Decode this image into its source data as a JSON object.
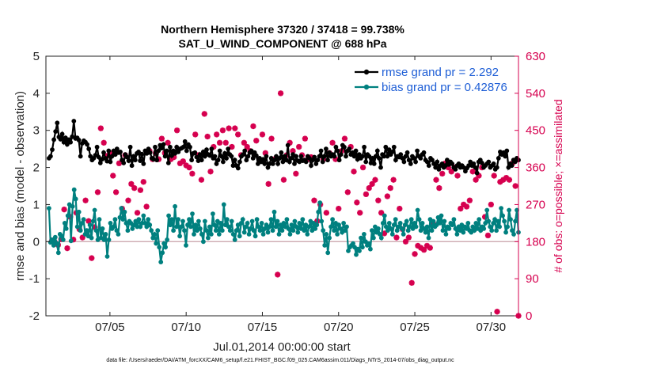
{
  "chart_data": {
    "type": "line",
    "title": "Northern Hemisphere 37320 / 37418 = 99.738%",
    "subtitle": "SAT_U_WIND_COMPONENT @ 688 hPa",
    "xlabel": "Jul.01,2014 00:00:00 start",
    "ylabel": "rmse and bias (model - observation)",
    "y2label": "# of obs: o=possible; ×=assimilated",
    "footnote": "data file: /Users/raeder/DAI/ATM_forcXX/CAM6_setup/f.e21.FHIST_BGC.f09_025.CAM6assim.011/Diags_NTrS_2014-07/obs_diag_output.nc",
    "xlim": [
      0.8,
      31.8
    ],
    "ylim": [
      -2,
      5
    ],
    "y2lim": [
      0,
      630
    ],
    "xticks": [
      5,
      10,
      15,
      20,
      25,
      30
    ],
    "xticklabels": [
      "07/05",
      "07/10",
      "07/15",
      "07/20",
      "07/25",
      "07/30"
    ],
    "yticks": [
      -2,
      -1,
      0,
      1,
      2,
      3,
      4,
      5
    ],
    "y2ticks": [
      0,
      90,
      180,
      270,
      360,
      450,
      540,
      630
    ],
    "legend_position": "top-right",
    "colors": {
      "rmse": "#000000",
      "bias": "#00807f",
      "obs": "#d6004f",
      "zero_line": "#c8a0a8",
      "axis": "#222222"
    },
    "series": [
      {
        "name": "rmse grand pr = 2.292",
        "color": "#000000",
        "values": [
          2.25,
          2.3,
          2.48,
          2.75,
          2.97,
          3.2,
          2.82,
          2.76,
          2.9,
          2.68,
          2.8,
          2.62,
          2.75,
          2.68,
          2.83,
          3.25,
          2.78,
          2.8,
          2.74,
          2.3,
          2.65,
          2.72,
          2.68,
          2.62,
          2.5,
          2.3,
          2.2,
          2.25,
          2.33,
          2.55,
          2.28,
          2.12,
          2.22,
          2.4,
          2.25,
          2.17,
          2.45,
          2.15,
          2.3,
          2.45,
          2.35,
          2.5,
          2.4,
          2.42,
          2.2,
          2.12,
          2.35,
          2.28,
          2.18,
          2.55,
          2.05,
          2.3,
          2.2,
          2.38,
          2.42,
          2.18,
          2.36,
          2.1,
          2.45,
          2.38,
          2.5,
          2.4,
          2.25,
          2.22,
          2.55,
          2.2,
          2.45,
          2.6,
          2.52,
          2.62,
          2.3,
          2.45,
          2.12,
          2.55,
          2.32,
          2.45,
          2.38,
          2.55,
          2.42,
          2.5,
          2.52,
          2.55,
          2.7,
          2.45,
          2.62,
          2.55,
          2.2,
          2.38,
          2.4,
          2.28,
          2.18,
          2.35,
          2.2,
          2.42,
          2.3,
          2.48,
          2.35,
          2.32,
          2.5,
          2.25,
          2.3,
          2.1,
          2.2,
          2.45,
          2.3,
          2.15,
          2.38,
          2.25,
          2.5,
          2.35,
          2.3,
          2.05,
          2.2,
          2.05,
          1.98,
          2.15,
          2.3,
          2.35,
          2.45,
          2.2,
          2.3,
          2.4,
          2.45,
          2.25,
          2.4,
          2.32,
          2.1,
          2.25,
          2.15,
          2.22,
          2.1,
          2.3,
          2.0,
          2.1,
          2.25,
          2.1,
          2.2,
          2.3,
          2.1,
          2.25,
          2.4,
          2.15,
          2.3,
          2.2,
          2.6,
          2.15,
          2.25,
          2.35,
          2.1,
          2.3,
          2.18,
          2.15,
          2.3,
          2.18,
          2.2,
          2.15,
          2.3,
          2.25,
          2.05,
          2.2,
          2.28,
          2.1,
          2.2,
          2.3,
          2.45,
          2.15,
          2.3,
          2.5,
          2.2,
          2.4,
          2.3,
          2.35,
          2.3,
          2.55,
          2.45,
          2.2,
          2.35,
          2.6,
          2.55,
          2.3,
          2.45,
          2.5,
          2.35,
          2.4,
          2.3,
          2.45,
          2.22,
          2.35,
          2.25,
          2.3,
          2.55,
          2.15,
          2.35,
          2.3,
          2.12,
          2.25,
          2.1,
          2.3,
          2.45,
          2.25,
          2.0,
          2.35,
          2.3,
          2.55,
          2.3,
          2.48,
          2.35,
          2.42,
          2.55,
          2.2,
          2.3,
          2.28,
          2.35,
          2.25,
          2.15,
          2.3,
          2.4,
          2.2,
          2.1,
          2.3,
          2.25,
          2.15,
          2.45,
          2.3,
          2.25,
          2.35,
          2.4,
          2.2,
          2.15,
          2.05,
          2.25,
          2.2,
          2.1,
          2.0,
          2.15,
          1.95,
          2.05,
          2.1,
          2.0,
          2.05,
          2.2,
          2.08,
          2.15,
          2.1,
          2.0,
          1.95,
          2.05,
          2.1,
          2.0,
          2.05,
          2.0,
          1.9,
          1.98,
          2.05,
          2.15,
          2.05,
          2.1,
          2.0,
          1.85,
          2.15,
          2.2,
          2.12,
          2.0,
          2.05,
          2.1,
          2.15,
          2.0,
          2.05,
          2.1,
          1.95,
          2.0,
          2.25,
          2.42,
          2.35,
          2.4,
          2.3,
          2.45,
          2.0,
          2.1,
          2.05,
          2.2,
          2.15,
          2.25,
          2.2
        ]
      },
      {
        "name": "bias grand pr = 0.42876",
        "color": "#00807f",
        "values": [
          0.9,
          -0.02,
          0.05,
          -0.1,
          0.12,
          -0.05,
          -0.3,
          0.2,
          0.15,
          0.05,
          0.5,
          0.35,
          0.7,
          1.0,
          0.02,
          0.95,
          1.4,
          1.15,
          0.4,
          0.8,
          0.3,
          0.5,
          0.6,
          0.2,
          0.3,
          0.15,
          0.45,
          0.1,
          0.55,
          0.85,
          0.3,
          0.05,
          0.6,
          0.1,
          0.35,
          0.05,
          0.2,
          -0.4,
          0.05,
          0.5,
          0.35,
          0.4,
          0.6,
          0.3,
          0.2,
          0.65,
          0.9,
          0.6,
          0.8,
          0.5,
          0.3,
          0.55,
          0.5,
          0.35,
          0.45,
          0.55,
          0.4,
          0.6,
          0.4,
          0.5,
          0.7,
          0.5,
          0.4,
          0.6,
          0.45,
          0.3,
          0.1,
          0.2,
          -0.05,
          0.3,
          -0.15,
          -0.55,
          -0.3,
          -0.05,
          -0.15,
          0.05,
          0.7,
          0.45,
          0.6,
          0.3,
          0.95,
          0.4,
          0.6,
          0.15,
          0.4,
          0.55,
          0.3,
          -0.1,
          0.45,
          0.6,
          0.4,
          0.75,
          0.2,
          0.45,
          0.3,
          0.55,
          0.35,
          0.2,
          0.0,
          0.55,
          0.3,
          0.1,
          0.4,
          0.2,
          0.75,
          0.45,
          0.3,
          0.55,
          0.2,
          0.5,
          0.3,
          1.0,
          0.45,
          0.6,
          0.4,
          0.3,
          0.55,
          0.2,
          0.05,
          0.3,
          0.45,
          0.15,
          0.5,
          0.6,
          0.25,
          0.4,
          0.5,
          0.2,
          0.35,
          0.55,
          0.3,
          0.15,
          0.6,
          0.4,
          0.3,
          0.5,
          0.2,
          0.35,
          0.45,
          0.25,
          0.4,
          0.6,
          0.3,
          0.8,
          0.4,
          0.55,
          0.2,
          0.45,
          0.3,
          0.5,
          0.4,
          0.6,
          0.35,
          0.2,
          0.45,
          0.3,
          0.55,
          0.4,
          0.25,
          0.5,
          0.35,
          0.6,
          0.3,
          0.45,
          0.2,
          0.4,
          0.55,
          0.3,
          0.5,
          0.35,
          0.45,
          0.8,
          1.05,
          0.55,
          0.3,
          -0.1,
          0.2,
          -0.3,
          0.1,
          0.4,
          0.6,
          0.3,
          0.5,
          0.2,
          0.45,
          0.35,
          0.25,
          0.5,
          0.3,
          0.4,
          -0.25,
          -0.15,
          -0.1,
          -0.05,
          -0.15,
          -0.35,
          -0.2,
          -0.25,
          0.1,
          -0.15,
          0.2,
          0.0,
          -0.1,
          -0.05,
          -0.2,
          0.3,
          0.1,
          0.4,
          0.25,
          0.35,
          0.2,
          0.1,
          0.5,
          0.7,
          0.4,
          0.3,
          0.5,
          0.35,
          0.2,
          0.45,
          0.6,
          0.3,
          0.4,
          0.5,
          0.35,
          0.2,
          0.45,
          0.55,
          0.3,
          0.4,
          0.6,
          0.35,
          0.5,
          0.4,
          0.85,
          0.6,
          0.3,
          0.5,
          0.35,
          0.25,
          0.4,
          0.1,
          0.6,
          0.3,
          0.55,
          0.4,
          0.45,
          0.65,
          0.5,
          0.7,
          0.3,
          0.55,
          0.2,
          0.4,
          0.35,
          0.5,
          0.45,
          0.6,
          0.35,
          0.2,
          0.4,
          0.3,
          0.45,
          0.25,
          0.4,
          0.35,
          0.5,
          0.3,
          0.25,
          0.4,
          0.3,
          0.5,
          0.35,
          0.6,
          0.3,
          0.4,
          0.35,
          0.5,
          0.85,
          0.55,
          0.4,
          0.3,
          0.5,
          0.6,
          0.3,
          0.55,
          0.4,
          0.9,
          0.7,
          0.55,
          0.25,
          0.4,
          0.85,
          0.6,
          0.3,
          0.2,
          0.55,
          0.85,
          0.25
        ]
      }
    ],
    "obs_points": [
      [
        1.2,
        183
      ],
      [
        1.4,
        178
      ],
      [
        1.6,
        172
      ],
      [
        1.8,
        186
      ],
      [
        2.0,
        258
      ],
      [
        2.2,
        164
      ],
      [
        2.4,
        240
      ],
      [
        2.6,
        185
      ],
      [
        2.8,
        250
      ],
      [
        3.0,
        210
      ],
      [
        3.2,
        190
      ],
      [
        3.4,
        280
      ],
      [
        3.6,
        230
      ],
      [
        3.8,
        140
      ],
      [
        4.0,
        215
      ],
      [
        4.2,
        300
      ],
      [
        4.4,
        455
      ],
      [
        4.6,
        420
      ],
      [
        4.8,
        388
      ],
      [
        5.0,
        395
      ],
      [
        5.2,
        340
      ],
      [
        5.4,
        300
      ],
      [
        5.6,
        370
      ],
      [
        5.8,
        260
      ],
      [
        6.0,
        390
      ],
      [
        6.2,
        280
      ],
      [
        6.4,
        320
      ],
      [
        6.6,
        310
      ],
      [
        6.8,
        250
      ],
      [
        7.0,
        305
      ],
      [
        7.2,
        325
      ],
      [
        7.4,
        265
      ],
      [
        7.6,
        400
      ],
      [
        7.8,
        380
      ],
      [
        8.0,
        395
      ],
      [
        8.2,
        380
      ],
      [
        8.4,
        430
      ],
      [
        8.6,
        395
      ],
      [
        8.8,
        420
      ],
      [
        9.0,
        380
      ],
      [
        9.2,
        385
      ],
      [
        9.4,
        450
      ],
      [
        9.6,
        370
      ],
      [
        9.8,
        375
      ],
      [
        10.0,
        365
      ],
      [
        10.2,
        360
      ],
      [
        10.4,
        345
      ],
      [
        10.6,
        440
      ],
      [
        10.8,
        390
      ],
      [
        11.0,
        330
      ],
      [
        11.2,
        490
      ],
      [
        11.4,
        435
      ],
      [
        11.6,
        350
      ],
      [
        11.8,
        410
      ],
      [
        12.0,
        440
      ],
      [
        12.2,
        420
      ],
      [
        12.4,
        450
      ],
      [
        12.6,
        420
      ],
      [
        12.8,
        455
      ],
      [
        13.0,
        410
      ],
      [
        13.2,
        455
      ],
      [
        13.4,
        440
      ],
      [
        13.6,
        390
      ],
      [
        13.8,
        420
      ],
      [
        14.0,
        410
      ],
      [
        14.2,
        400
      ],
      [
        14.4,
        460
      ],
      [
        14.6,
        425
      ],
      [
        14.8,
        380
      ],
      [
        15.0,
        440
      ],
      [
        15.2,
        395
      ],
      [
        15.4,
        320
      ],
      [
        15.6,
        430
      ],
      [
        15.8,
        380
      ],
      [
        16.0,
        100
      ],
      [
        16.2,
        540
      ],
      [
        16.4,
        330
      ],
      [
        16.6,
        390
      ],
      [
        16.8,
        420
      ],
      [
        17.0,
        400
      ],
      [
        17.2,
        345
      ],
      [
        17.4,
        410
      ],
      [
        17.6,
        390
      ],
      [
        17.8,
        430
      ],
      [
        18.0,
        380
      ],
      [
        18.2,
        385
      ],
      [
        18.4,
        280
      ],
      [
        18.6,
        230
      ],
      [
        18.8,
        270
      ],
      [
        19.0,
        380
      ],
      [
        19.2,
        250
      ],
      [
        19.4,
        395
      ],
      [
        19.6,
        420
      ],
      [
        19.8,
        380
      ],
      [
        20.0,
        260
      ],
      [
        20.2,
        400
      ],
      [
        20.4,
        430
      ],
      [
        20.6,
        300
      ],
      [
        20.8,
        410
      ],
      [
        21.0,
        350
      ],
      [
        21.2,
        275
      ],
      [
        21.4,
        250
      ],
      [
        21.6,
        360
      ],
      [
        21.8,
        295
      ],
      [
        22.0,
        310
      ],
      [
        22.2,
        320
      ],
      [
        22.4,
        330
      ],
      [
        22.6,
        280
      ],
      [
        22.8,
        250
      ],
      [
        23.0,
        200
      ],
      [
        23.2,
        290
      ],
      [
        23.4,
        310
      ],
      [
        23.6,
        330
      ],
      [
        23.8,
        190
      ],
      [
        24.0,
        260
      ],
      [
        24.2,
        210
      ],
      [
        24.4,
        180
      ],
      [
        24.6,
        190
      ],
      [
        24.8,
        80
      ],
      [
        25.0,
        150
      ],
      [
        25.2,
        170
      ],
      [
        25.4,
        165
      ],
      [
        25.6,
        160
      ],
      [
        25.8,
        170
      ],
      [
        26.0,
        165
      ],
      [
        26.2,
        225
      ],
      [
        26.4,
        330
      ],
      [
        26.6,
        310
      ],
      [
        26.8,
        345
      ],
      [
        27.0,
        370
      ],
      [
        27.2,
        360
      ],
      [
        27.4,
        350
      ],
      [
        27.6,
        360
      ],
      [
        27.8,
        340
      ],
      [
        28.0,
        260
      ],
      [
        28.2,
        270
      ],
      [
        28.4,
        265
      ],
      [
        28.6,
        280
      ],
      [
        28.8,
        350
      ],
      [
        29.0,
        330
      ],
      [
        29.2,
        340
      ],
      [
        29.4,
        360
      ],
      [
        29.6,
        240
      ],
      [
        29.8,
        195
      ],
      [
        30.0,
        270
      ],
      [
        30.2,
        340
      ],
      [
        30.4,
        10
      ],
      [
        30.6,
        325
      ],
      [
        30.8,
        330
      ],
      [
        31.0,
        335
      ],
      [
        31.2,
        330
      ],
      [
        31.4,
        370
      ],
      [
        31.6,
        315
      ],
      [
        31.8,
        0
      ]
    ]
  }
}
